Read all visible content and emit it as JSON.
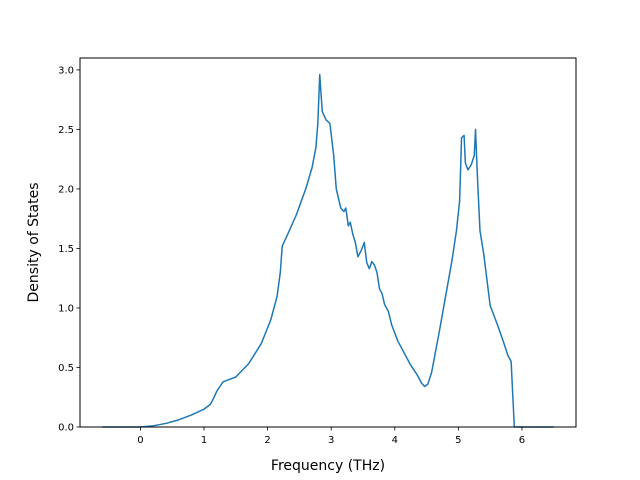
{
  "chart_data": {
    "type": "line",
    "title": "",
    "xlabel": "Frequency (THz)",
    "ylabel": "Density of States",
    "xlim": [
      -0.95,
      6.85
    ],
    "ylim": [
      0.0,
      3.1
    ],
    "xticks": [
      {
        "value": 0,
        "label": "0"
      },
      {
        "value": 1,
        "label": "1"
      },
      {
        "value": 2,
        "label": "2"
      },
      {
        "value": 3,
        "label": "3"
      },
      {
        "value": 4,
        "label": "4"
      },
      {
        "value": 5,
        "label": "5"
      },
      {
        "value": 6,
        "label": "6"
      }
    ],
    "yticks": [
      {
        "value": 0.0,
        "label": "0.0"
      },
      {
        "value": 0.5,
        "label": "0.5"
      },
      {
        "value": 1.0,
        "label": "1.0"
      },
      {
        "value": 1.5,
        "label": "1.5"
      },
      {
        "value": 2.0,
        "label": "2.0"
      },
      {
        "value": 2.5,
        "label": "2.5"
      },
      {
        "value": 3.0,
        "label": "3.0"
      }
    ],
    "grid": false,
    "legend": "none",
    "series": [
      {
        "color": "#1f77b4",
        "x": [
          -0.6,
          -0.2,
          0.0,
          0.2,
          0.4,
          0.6,
          0.8,
          1.0,
          1.1,
          1.15,
          1.2,
          1.3,
          1.5,
          1.7,
          1.9,
          2.05,
          2.15,
          2.2,
          2.23,
          2.3,
          2.45,
          2.6,
          2.7,
          2.76,
          2.79,
          2.82,
          2.86,
          2.92,
          2.98,
          3.04,
          3.08,
          3.15,
          3.2,
          3.23,
          3.27,
          3.3,
          3.34,
          3.38,
          3.42,
          3.47,
          3.52,
          3.56,
          3.6,
          3.64,
          3.68,
          3.72,
          3.76,
          3.8,
          3.84,
          3.9,
          3.95,
          4.05,
          4.15,
          4.25,
          4.35,
          4.42,
          4.47,
          4.52,
          4.58,
          4.7,
          4.8,
          4.9,
          4.97,
          5.02,
          5.05,
          5.09,
          5.11,
          5.15,
          5.2,
          5.25,
          5.27,
          5.3,
          5.34,
          5.4,
          5.5,
          5.6,
          5.7,
          5.78,
          5.83,
          5.88,
          5.95,
          6.2,
          6.5
        ],
        "y": [
          0.0,
          0.0,
          0.0,
          0.01,
          0.03,
          0.06,
          0.1,
          0.15,
          0.19,
          0.24,
          0.3,
          0.38,
          0.42,
          0.53,
          0.7,
          0.9,
          1.1,
          1.3,
          1.52,
          1.6,
          1.78,
          2.0,
          2.18,
          2.35,
          2.55,
          2.96,
          2.65,
          2.58,
          2.55,
          2.28,
          2.0,
          1.84,
          1.81,
          1.84,
          1.69,
          1.72,
          1.62,
          1.55,
          1.43,
          1.48,
          1.55,
          1.38,
          1.33,
          1.39,
          1.36,
          1.3,
          1.16,
          1.12,
          1.03,
          0.97,
          0.86,
          0.72,
          0.62,
          0.52,
          0.44,
          0.37,
          0.34,
          0.36,
          0.46,
          0.8,
          1.1,
          1.4,
          1.65,
          1.9,
          2.43,
          2.45,
          2.22,
          2.16,
          2.2,
          2.28,
          2.5,
          2.1,
          1.65,
          1.45,
          1.02,
          0.88,
          0.73,
          0.6,
          0.55,
          0.0,
          0.0,
          0.0,
          0.0
        ]
      }
    ]
  }
}
